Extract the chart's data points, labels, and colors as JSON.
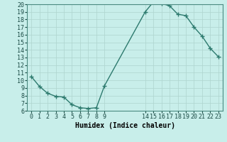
{
  "x": [
    0,
    1,
    2,
    3,
    4,
    5,
    6,
    7,
    8,
    9,
    14,
    15,
    16,
    17,
    18,
    19,
    20,
    21,
    22,
    23
  ],
  "y": [
    10.5,
    9.2,
    8.3,
    7.9,
    7.8,
    6.8,
    6.4,
    6.3,
    6.4,
    9.3,
    19.0,
    20.3,
    20.1,
    19.8,
    18.7,
    18.5,
    17.0,
    15.8,
    14.2,
    13.1
  ],
  "line_color": "#2d7a6e",
  "marker_color": "#2d7a6e",
  "bg_color": "#c8eeea",
  "grid_color": "#aed4ce",
  "xlabel": "Humidex (Indice chaleur)",
  "ylim": [
    6,
    20
  ],
  "xlim_min": -0.5,
  "xlim_max": 23.5,
  "yticks": [
    6,
    7,
    8,
    9,
    10,
    11,
    12,
    13,
    14,
    15,
    16,
    17,
    18,
    19,
    20
  ],
  "xticks": [
    0,
    1,
    2,
    3,
    4,
    5,
    6,
    7,
    8,
    9,
    14,
    15,
    16,
    17,
    18,
    19,
    20,
    21,
    22,
    23
  ],
  "xlabel_fontsize": 7,
  "tick_fontsize": 6,
  "marker_size": 2.5,
  "line_width": 1.0
}
